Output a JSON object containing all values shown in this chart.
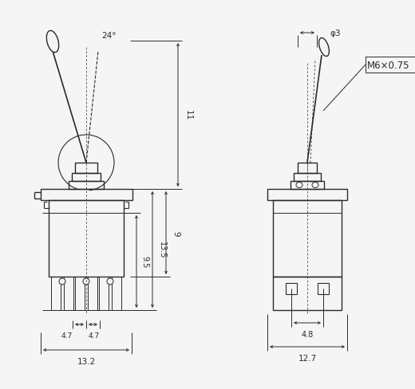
{
  "bg_color": "#f5f5f5",
  "line_color": "#2a2a2a",
  "fig_width": 5.2,
  "fig_height": 4.89,
  "dpi": 100,
  "annotations": {
    "angle_24": "24°",
    "dim_11": "11",
    "dim_9": "9",
    "dim_9_5": "9.5",
    "dim_13_5": "13.5",
    "dim_4_7a": "4.7",
    "dim_4_7b": "4.7",
    "dim_13_2": "13.2",
    "dim_phi3": "φ3",
    "dim_m6": "M6×0.75",
    "dim_4_8": "4.8",
    "dim_12_7": "12.7"
  }
}
